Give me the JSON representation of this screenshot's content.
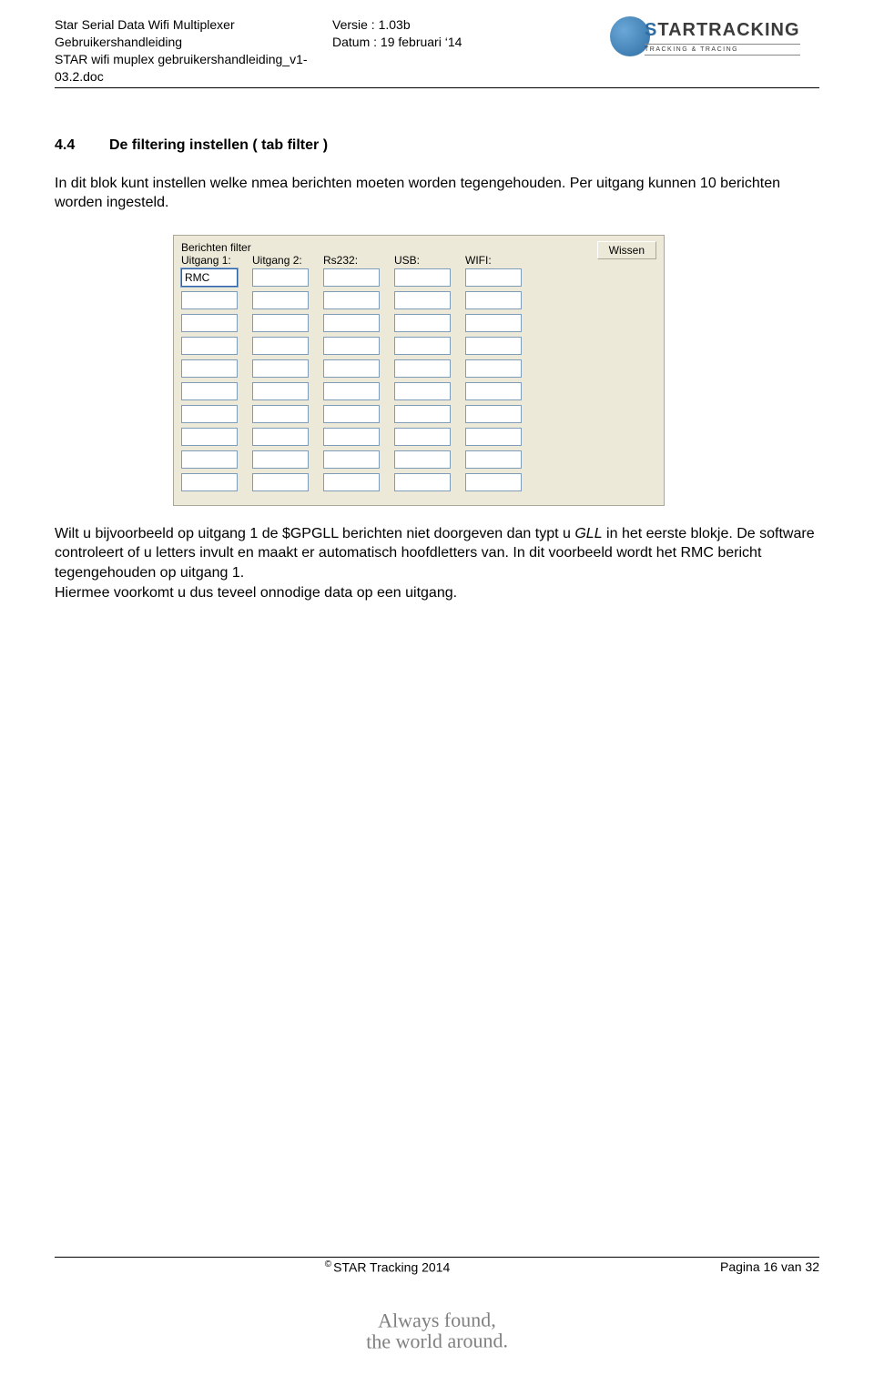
{
  "header": {
    "left_line1": "Star Serial Data Wifi Multiplexer",
    "left_line2": "Gebruikershandleiding",
    "left_line3": "STAR wifi muplex gebruikershandleiding_v1-03.2.doc",
    "mid_line1": "Versie :  1.03b",
    "mid_line2": "Datum :  19 februari ‘14",
    "logo_main_prefix": "S",
    "logo_main_rest": "TARTRACKING",
    "logo_sub": "TRACKING & TRACING"
  },
  "section": {
    "number": "4.4",
    "title": "De filtering instellen ( tab filter )"
  },
  "para1": "In dit blok kunt instellen welke nmea berichten moeten worden tegengehouden. Per uitgang kunnen 10 berichten worden ingesteld.",
  "panel": {
    "groupbox_title": "Berichten filter",
    "wissen_label": "Wissen",
    "columns": [
      "Uitgang 1:",
      "Uitgang 2:",
      "Rs232:",
      "USB:",
      "WIFI:"
    ],
    "first_cell_value": "RMC",
    "rows": 10,
    "cols": 5,
    "colors": {
      "panel_bg": "#ece9d8",
      "panel_border": "#aca899",
      "input_border": "#7f9db9",
      "input_bg": "#ffffff",
      "focus_border": "#2a5fa3"
    },
    "font": {
      "family": "Tahoma",
      "size_pt": 9
    }
  },
  "para2_pre": "Wilt u bijvoorbeeld op uitgang 1 de $GPGLL berichten niet doorgeven dan typt u ",
  "para2_italic": "GLL",
  "para2_post": " in het eerste blokje. De software controleert of u letters invult en maakt er automatisch hoofdletters van. In dit voorbeeld wordt het RMC bericht tegengehouden op uitgang 1.",
  "para3": "Hiermee voorkomt u dus teveel onnodige data op een uitgang.",
  "footer": {
    "copyright": "STAR Tracking 2014",
    "page": "Pagina 16 van 32"
  },
  "slogan_line1": "Always found,",
  "slogan_line2": "the world around."
}
